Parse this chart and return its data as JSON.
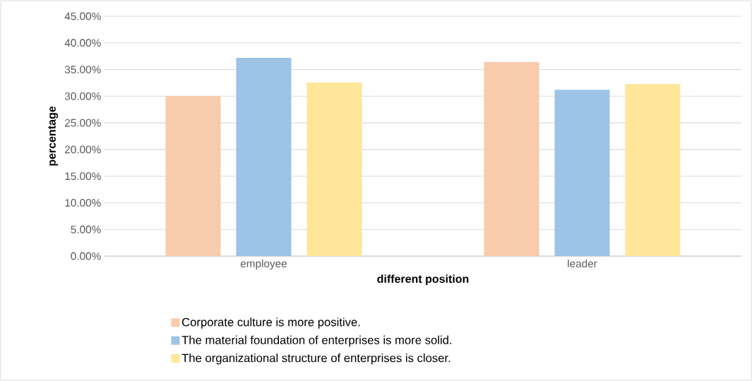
{
  "chart_data": {
    "type": "bar",
    "xlabel": "different position",
    "ylabel": "percentage",
    "categories": [
      "employee",
      "leader"
    ],
    "series": [
      {
        "name": "Corporate culture is more positive.",
        "color": "#f8cbad",
        "values": [
          30.0,
          36.4
        ]
      },
      {
        "name": "The material foundation of enterprises is more solid.",
        "color": "#9dc3e6",
        "values": [
          37.2,
          31.2
        ]
      },
      {
        "name": "The organizational structure of enterprises is closer.",
        "color": "#ffe699",
        "values": [
          32.6,
          32.3
        ]
      }
    ],
    "ylim": [
      0,
      45
    ],
    "yticks": [
      {
        "value": 0,
        "label": "0.00%"
      },
      {
        "value": 5,
        "label": "5.00%"
      },
      {
        "value": 10,
        "label": "10.00%"
      },
      {
        "value": 15,
        "label": "15.00%"
      },
      {
        "value": 20,
        "label": "20.00%"
      },
      {
        "value": 25,
        "label": "25.00%"
      },
      {
        "value": 30,
        "label": "30.00%"
      },
      {
        "value": 35,
        "label": "35.00%"
      },
      {
        "value": 40,
        "label": "40.00%"
      },
      {
        "value": 45,
        "label": "45.00%"
      }
    ],
    "grid": "y",
    "legend": "bottom"
  }
}
